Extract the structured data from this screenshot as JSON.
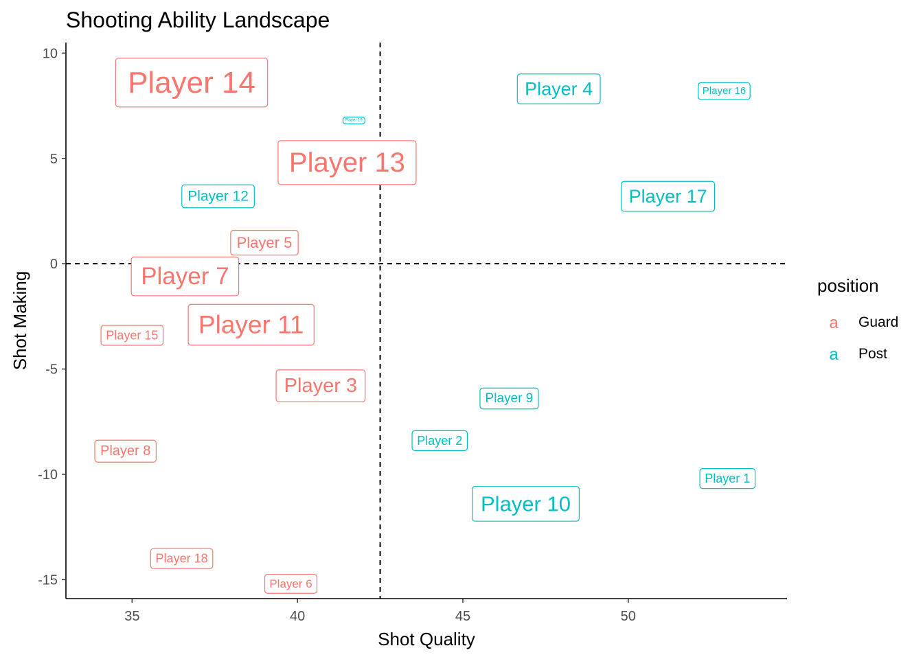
{
  "chart_data": {
    "type": "scatter",
    "title": "Shooting Ability Landscape",
    "xlabel": "Shot Quality",
    "ylabel": "Shot Making",
    "xlim": [
      33,
      54.8
    ],
    "ylim": [
      -15.9,
      10.5
    ],
    "x_ticks": [
      35,
      40,
      45,
      50
    ],
    "y_ticks": [
      10,
      5,
      0,
      -5,
      -10,
      -15
    ],
    "reference_lines": {
      "x": 42.5,
      "y": 0,
      "style": "dashed"
    },
    "grid": false,
    "legend": {
      "title": "position",
      "placement": "right",
      "entries": [
        {
          "key_glyph": "a",
          "label": "Guard",
          "color": "#F8766D"
        },
        {
          "key_glyph": "a",
          "label": "Post",
          "color": "#00BFC4"
        }
      ]
    },
    "points": [
      {
        "label": "Player 14",
        "x": 36.8,
        "y": 8.6,
        "position": "Guard",
        "size": 44
      },
      {
        "label": "Player 4",
        "x": 47.9,
        "y": 8.3,
        "position": "Post",
        "size": 27
      },
      {
        "label": "Player 16",
        "x": 52.9,
        "y": 8.2,
        "position": "Post",
        "size": 15
      },
      {
        "label": "Player 19",
        "x": 41.7,
        "y": 6.8,
        "position": "Post",
        "size": 6
      },
      {
        "label": "Player 13",
        "x": 41.5,
        "y": 4.8,
        "position": "Guard",
        "size": 40
      },
      {
        "label": "Player 12",
        "x": 37.6,
        "y": 3.2,
        "position": "Post",
        "size": 21
      },
      {
        "label": "Player 17",
        "x": 51.2,
        "y": 3.2,
        "position": "Post",
        "size": 27
      },
      {
        "label": "Player 5",
        "x": 39.0,
        "y": 1.0,
        "position": "Guard",
        "size": 22
      },
      {
        "label": "Player 7",
        "x": 36.6,
        "y": -0.6,
        "position": "Guard",
        "size": 35
      },
      {
        "label": "Player 11",
        "x": 38.6,
        "y": -2.9,
        "position": "Guard",
        "size": 37
      },
      {
        "label": "Player 15",
        "x": 35.0,
        "y": -3.4,
        "position": "Guard",
        "size": 18
      },
      {
        "label": "Player 3",
        "x": 40.7,
        "y": -5.8,
        "position": "Guard",
        "size": 29
      },
      {
        "label": "Player 9",
        "x": 46.4,
        "y": -6.4,
        "position": "Post",
        "size": 19
      },
      {
        "label": "Player 2",
        "x": 44.3,
        "y": -8.4,
        "position": "Post",
        "size": 18
      },
      {
        "label": "Player 8",
        "x": 34.8,
        "y": -8.9,
        "position": "Guard",
        "size": 20
      },
      {
        "label": "Player 1",
        "x": 53.0,
        "y": -10.2,
        "position": "Post",
        "size": 18
      },
      {
        "label": "Player 10",
        "x": 46.9,
        "y": -11.4,
        "position": "Post",
        "size": 31
      },
      {
        "label": "Player 18",
        "x": 36.5,
        "y": -14.0,
        "position": "Guard",
        "size": 18
      },
      {
        "label": "Player 6",
        "x": 39.8,
        "y": -15.2,
        "position": "Guard",
        "size": 17
      }
    ]
  }
}
